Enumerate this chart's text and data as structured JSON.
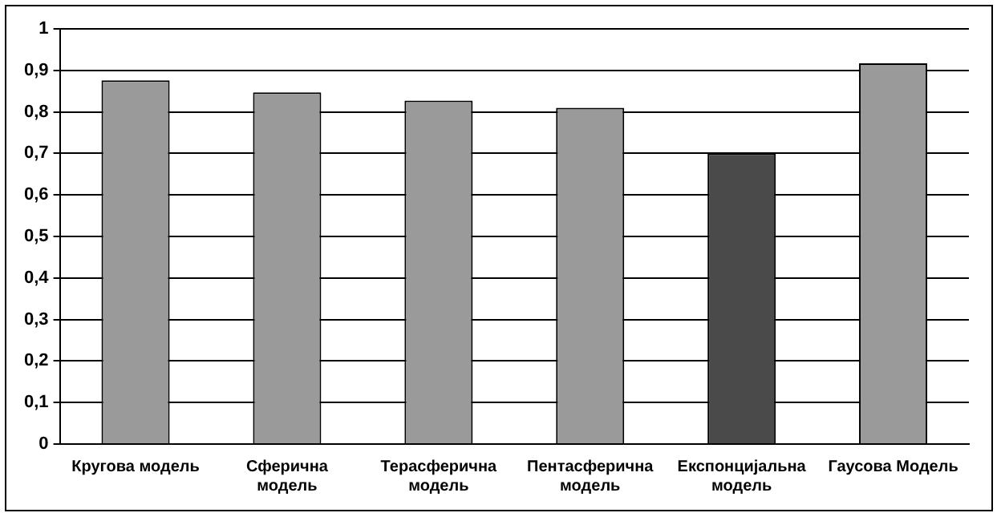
{
  "chart_data": {
    "type": "bar",
    "categories": [
      "Кругова модель",
      "Сферична модель",
      "Терасферична модель",
      "Пентасферична модель",
      "Експонцијальна модель",
      "Гаусова Модель"
    ],
    "values": [
      0.876,
      0.847,
      0.827,
      0.81,
      0.7,
      0.917
    ],
    "colors": [
      "#9a9a9a",
      "#9a9a9a",
      "#9a9a9a",
      "#9a9a9a",
      "#4a4a4a",
      "#9a9a9a"
    ],
    "ylim": [
      0,
      1
    ],
    "yticks": [
      {
        "value": 0,
        "label": "0"
      },
      {
        "value": 0.1,
        "label": "0,1"
      },
      {
        "value": 0.2,
        "label": "0,2"
      },
      {
        "value": 0.3,
        "label": "0,3"
      },
      {
        "value": 0.4,
        "label": "0,4"
      },
      {
        "value": 0.5,
        "label": "0,5"
      },
      {
        "value": 0.6,
        "label": "0,6"
      },
      {
        "value": 0.7,
        "label": "0,7"
      },
      {
        "value": 0.8,
        "label": "0,8"
      },
      {
        "value": 0.9,
        "label": "0,9"
      },
      {
        "value": 1,
        "label": "1"
      }
    ],
    "grid": "y",
    "legend": false
  }
}
